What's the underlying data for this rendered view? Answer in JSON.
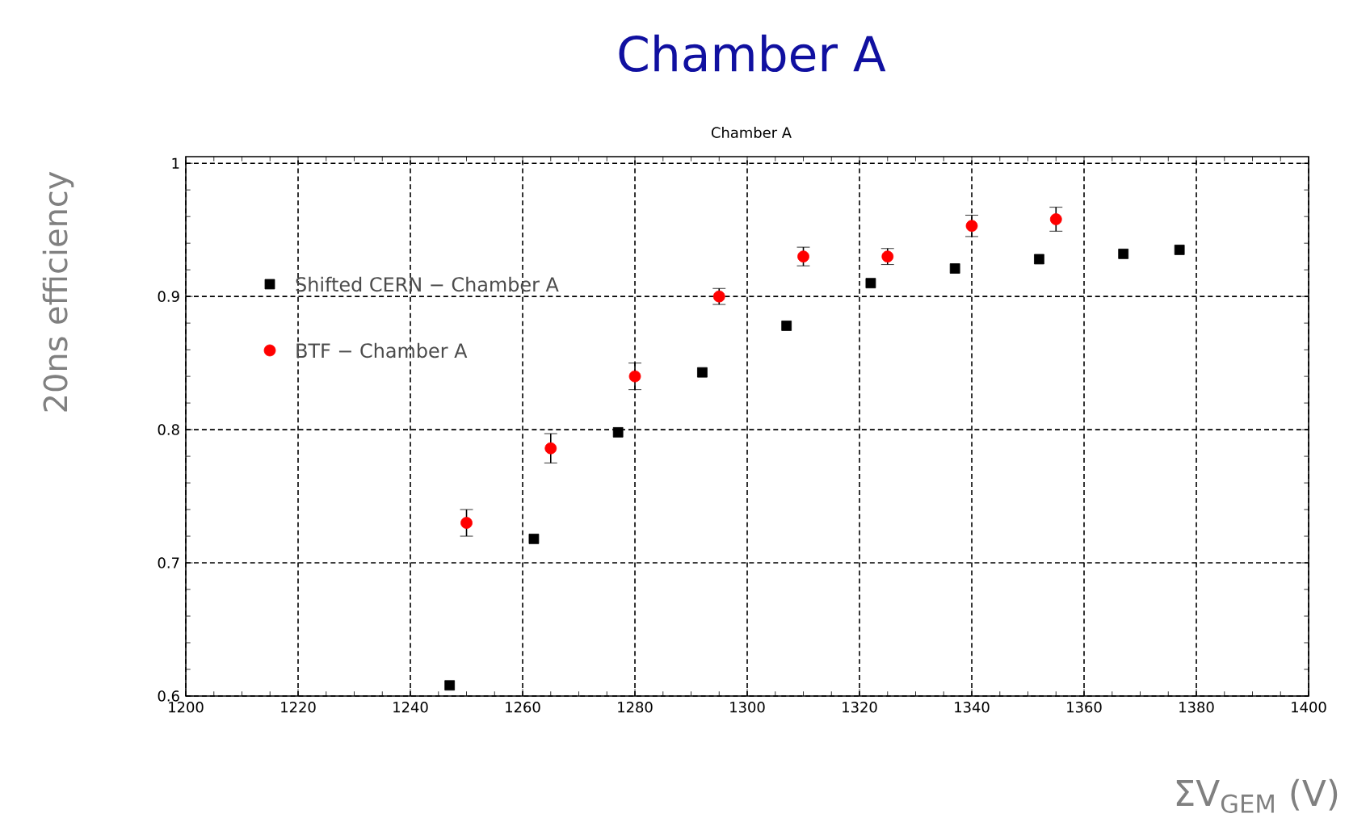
{
  "chart_data": {
    "type": "scatter",
    "title": "Chamber A",
    "subtitle": "Chamber A",
    "xlabel": "ΣV$_{GEM}$ (V)",
    "ylabel": "20ns efficiency",
    "xlim": [
      1200,
      1400
    ],
    "ylim": [
      0.6,
      1.005
    ],
    "xticks": [
      1200,
      1220,
      1240,
      1260,
      1280,
      1300,
      1320,
      1340,
      1360,
      1380,
      1400
    ],
    "yticks": [
      0.6,
      0.7,
      0.8,
      0.9,
      1
    ],
    "grid": true,
    "legend": "top left",
    "series": [
      {
        "name": "Shifted CERN − Chamber A",
        "color": "#000000",
        "marker": "square",
        "x": [
          1247,
          1262,
          1277,
          1292,
          1307,
          1322,
          1337,
          1352,
          1367,
          1377
        ],
        "values": [
          0.608,
          0.718,
          0.798,
          0.843,
          0.878,
          0.91,
          0.921,
          0.928,
          0.932,
          0.935
        ]
      },
      {
        "name": "BTF − Chamber A",
        "color": "#ff0000",
        "marker": "circle",
        "x": [
          1250,
          1265,
          1280,
          1295,
          1310,
          1325,
          1340,
          1355
        ],
        "values": [
          0.73,
          0.786,
          0.84,
          0.9,
          0.93,
          0.93,
          0.953,
          0.958
        ],
        "errors": [
          0.01,
          0.011,
          0.01,
          0.006,
          0.007,
          0.006,
          0.008,
          0.009
        ]
      }
    ]
  }
}
